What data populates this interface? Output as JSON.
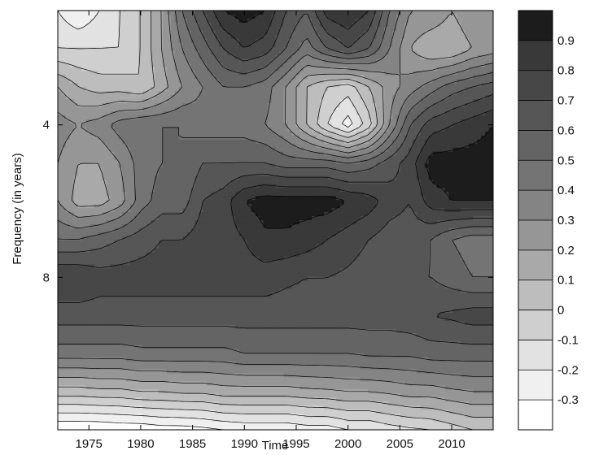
{
  "chart_data": {
    "type": "heatmap",
    "title": "",
    "xlabel": "Time",
    "ylabel": "Frequency (in years)",
    "xlim": [
      1972,
      2014
    ],
    "x_ticks": [
      "1975",
      "1980",
      "1985",
      "1990",
      "1995",
      "2000",
      "2005",
      "2010"
    ],
    "y_ticks": [
      "4",
      "8"
    ],
    "y_tick_positions": [
      4,
      8
    ],
    "ylim_top": 1,
    "ylim_bottom": 12,
    "y_inverted": true,
    "grid": false,
    "colorbar": {
      "placement": "right",
      "levels": [
        -0.4,
        -0.3,
        -0.2,
        -0.1,
        0,
        0.1,
        0.2,
        0.3,
        0.4,
        0.5,
        0.6,
        0.7,
        0.8,
        0.9,
        1.0
      ],
      "tick_labels": [
        "-0.3",
        "-0.2",
        "-0.1",
        "0",
        "0.1",
        "0.2",
        "0.3",
        "0.4",
        "0.5",
        "0.6",
        "0.7",
        "0.8",
        "0.9"
      ],
      "colors": [
        "#ffffff",
        "#f0f0f0",
        "#e2e2e2",
        "#cfcfcf",
        "#bdbdbd",
        "#a9a9a9",
        "#969696",
        "#848484",
        "#747474",
        "#646464",
        "#565656",
        "#474747",
        "#393939",
        "#1c1c1c"
      ]
    },
    "x": [
      1972,
      1974,
      1976,
      1978,
      1980,
      1982,
      1984,
      1986,
      1988,
      1990,
      1992,
      1994,
      1996,
      1998,
      2000,
      2002,
      2004,
      2006,
      2008,
      2010,
      2012,
      2014
    ],
    "y": [
      1,
      2,
      3,
      4,
      5,
      6,
      7,
      8,
      9,
      10,
      11,
      12
    ],
    "z": [
      [
        -0.2,
        -0.3,
        -0.2,
        -0.1,
        0.0,
        0.2,
        0.5,
        0.7,
        0.9,
        0.95,
        0.9,
        0.7,
        0.6,
        0.85,
        0.9,
        0.8,
        0.5,
        0.3,
        0.3,
        0.2,
        0.3,
        0.3
      ],
      [
        -0.1,
        -0.1,
        -0.1,
        -0.1,
        0.0,
        0.2,
        0.4,
        0.55,
        0.7,
        0.8,
        0.75,
        0.6,
        0.45,
        0.6,
        0.7,
        0.6,
        0.4,
        0.2,
        0.1,
        0.1,
        0.2,
        0.25
      ],
      [
        0.2,
        0.1,
        0.05,
        0.05,
        0.0,
        0.15,
        0.3,
        0.4,
        0.5,
        0.5,
        0.45,
        0.3,
        0.1,
        0.0,
        -0.05,
        0.1,
        0.25,
        0.35,
        0.45,
        0.55,
        0.6,
        0.65
      ],
      [
        0.35,
        0.3,
        0.35,
        0.45,
        0.5,
        0.5,
        0.5,
        0.45,
        0.45,
        0.45,
        0.4,
        0.3,
        0.1,
        -0.1,
        -0.25,
        -0.05,
        0.3,
        0.6,
        0.75,
        0.8,
        0.85,
        0.9
      ],
      [
        0.3,
        0.2,
        0.2,
        0.3,
        0.45,
        0.5,
        0.5,
        0.6,
        0.6,
        0.6,
        0.6,
        0.55,
        0.55,
        0.55,
        0.5,
        0.55,
        0.65,
        0.75,
        0.95,
        0.95,
        0.95,
        0.95
      ],
      [
        0.3,
        0.15,
        0.15,
        0.25,
        0.45,
        0.55,
        0.55,
        0.7,
        0.75,
        0.9,
        0.95,
        0.95,
        0.95,
        0.95,
        0.9,
        0.85,
        0.75,
        0.7,
        0.85,
        0.9,
        0.9,
        0.9
      ],
      [
        0.5,
        0.5,
        0.55,
        0.6,
        0.65,
        0.7,
        0.7,
        0.75,
        0.75,
        0.8,
        0.88,
        0.88,
        0.85,
        0.8,
        0.75,
        0.7,
        0.65,
        0.65,
        0.6,
        0.5,
        0.45,
        0.45
      ],
      [
        0.8,
        0.8,
        0.75,
        0.75,
        0.75,
        0.75,
        0.75,
        0.75,
        0.75,
        0.75,
        0.75,
        0.72,
        0.7,
        0.7,
        0.68,
        0.65,
        0.6,
        0.6,
        0.6,
        0.55,
        0.5,
        0.5
      ],
      [
        0.65,
        0.65,
        0.65,
        0.65,
        0.65,
        0.65,
        0.65,
        0.65,
        0.65,
        0.65,
        0.65,
        0.65,
        0.65,
        0.65,
        0.65,
        0.65,
        0.65,
        0.67,
        0.7,
        0.72,
        0.75,
        0.75
      ],
      [
        0.45,
        0.45,
        0.45,
        0.45,
        0.47,
        0.47,
        0.47,
        0.47,
        0.47,
        0.5,
        0.5,
        0.5,
        0.5,
        0.5,
        0.5,
        0.52,
        0.52,
        0.52,
        0.55,
        0.55,
        0.55,
        0.55
      ],
      [
        0.05,
        0.05,
        0.07,
        0.07,
        0.1,
        0.1,
        0.12,
        0.12,
        0.15,
        0.15,
        0.15,
        0.15,
        0.17,
        0.18,
        0.2,
        0.2,
        0.22,
        0.25,
        0.25,
        0.28,
        0.3,
        0.3
      ],
      [
        -0.4,
        -0.4,
        -0.4,
        -0.38,
        -0.38,
        -0.35,
        -0.35,
        -0.33,
        -0.3,
        -0.28,
        -0.28,
        -0.28,
        -0.25,
        -0.25,
        -0.2,
        -0.2,
        -0.15,
        -0.12,
        -0.1,
        -0.05,
        0.0,
        0.0
      ]
    ]
  }
}
